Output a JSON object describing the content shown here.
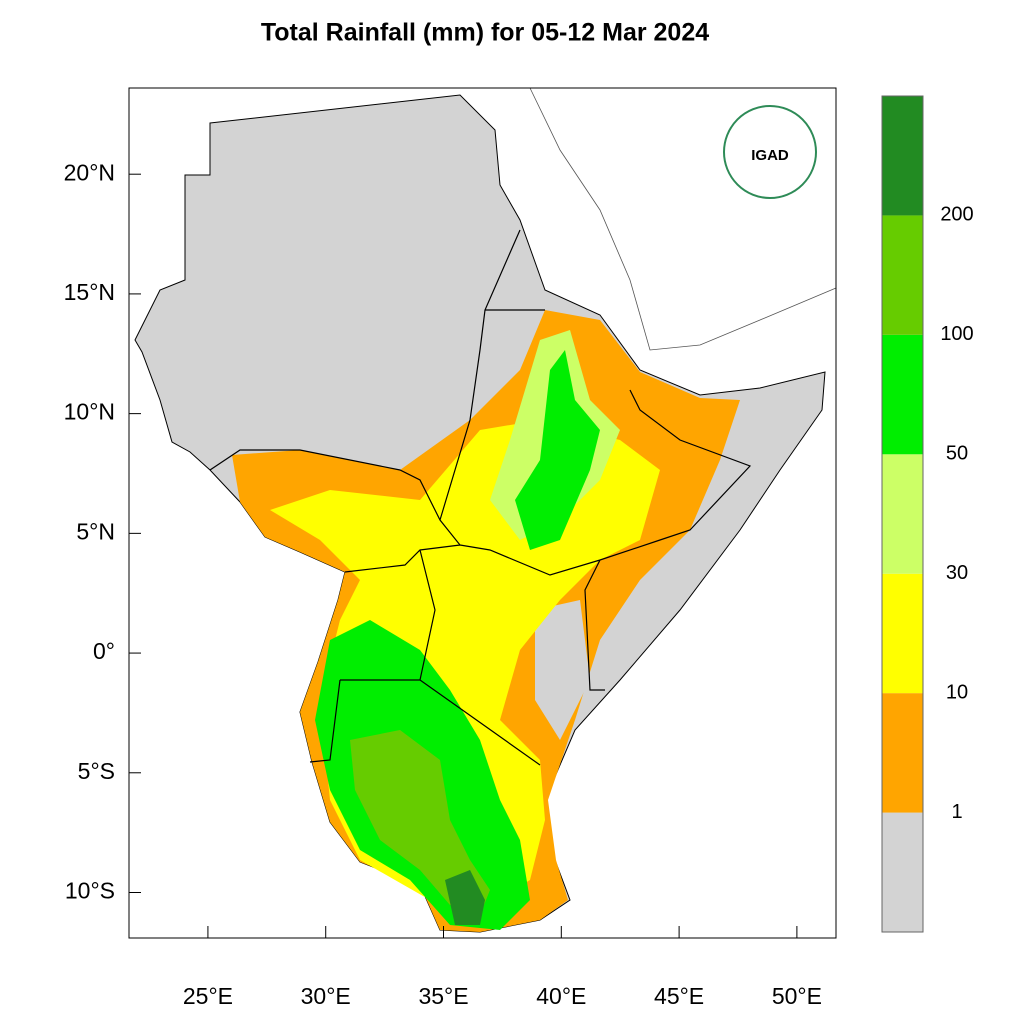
{
  "title": "Total Rainfall (mm) for 05-12 Mar 2024",
  "map": {
    "xlim": [
      21.65,
      51.66
    ],
    "ylim": [
      -11.9,
      23.6
    ],
    "xticks": [
      {
        "value": 25,
        "label": "25°E"
      },
      {
        "value": 30,
        "label": "30°E"
      },
      {
        "value": 35,
        "label": "35°E"
      },
      {
        "value": 40,
        "label": "40°E"
      },
      {
        "value": 45,
        "label": "45°E"
      },
      {
        "value": 50,
        "label": "50°E"
      }
    ],
    "yticks": [
      {
        "value": 20,
        "label": "20°N"
      },
      {
        "value": 15,
        "label": "15°N"
      },
      {
        "value": 10,
        "label": "10°N"
      },
      {
        "value": 5,
        "label": "5°N"
      },
      {
        "value": 0,
        "label": "0°"
      },
      {
        "value": -5,
        "label": "5°S"
      },
      {
        "value": -10,
        "label": "10°S"
      }
    ]
  },
  "colorbar": {
    "levels": [
      1,
      10,
      30,
      50,
      100,
      200
    ],
    "colors": [
      "#d3d3d3",
      "#ffa500",
      "#ffff00",
      "#ccff66",
      "#00ee00",
      "#66cc00",
      "#228b22"
    ]
  },
  "logo": {
    "text": "IGAD"
  }
}
